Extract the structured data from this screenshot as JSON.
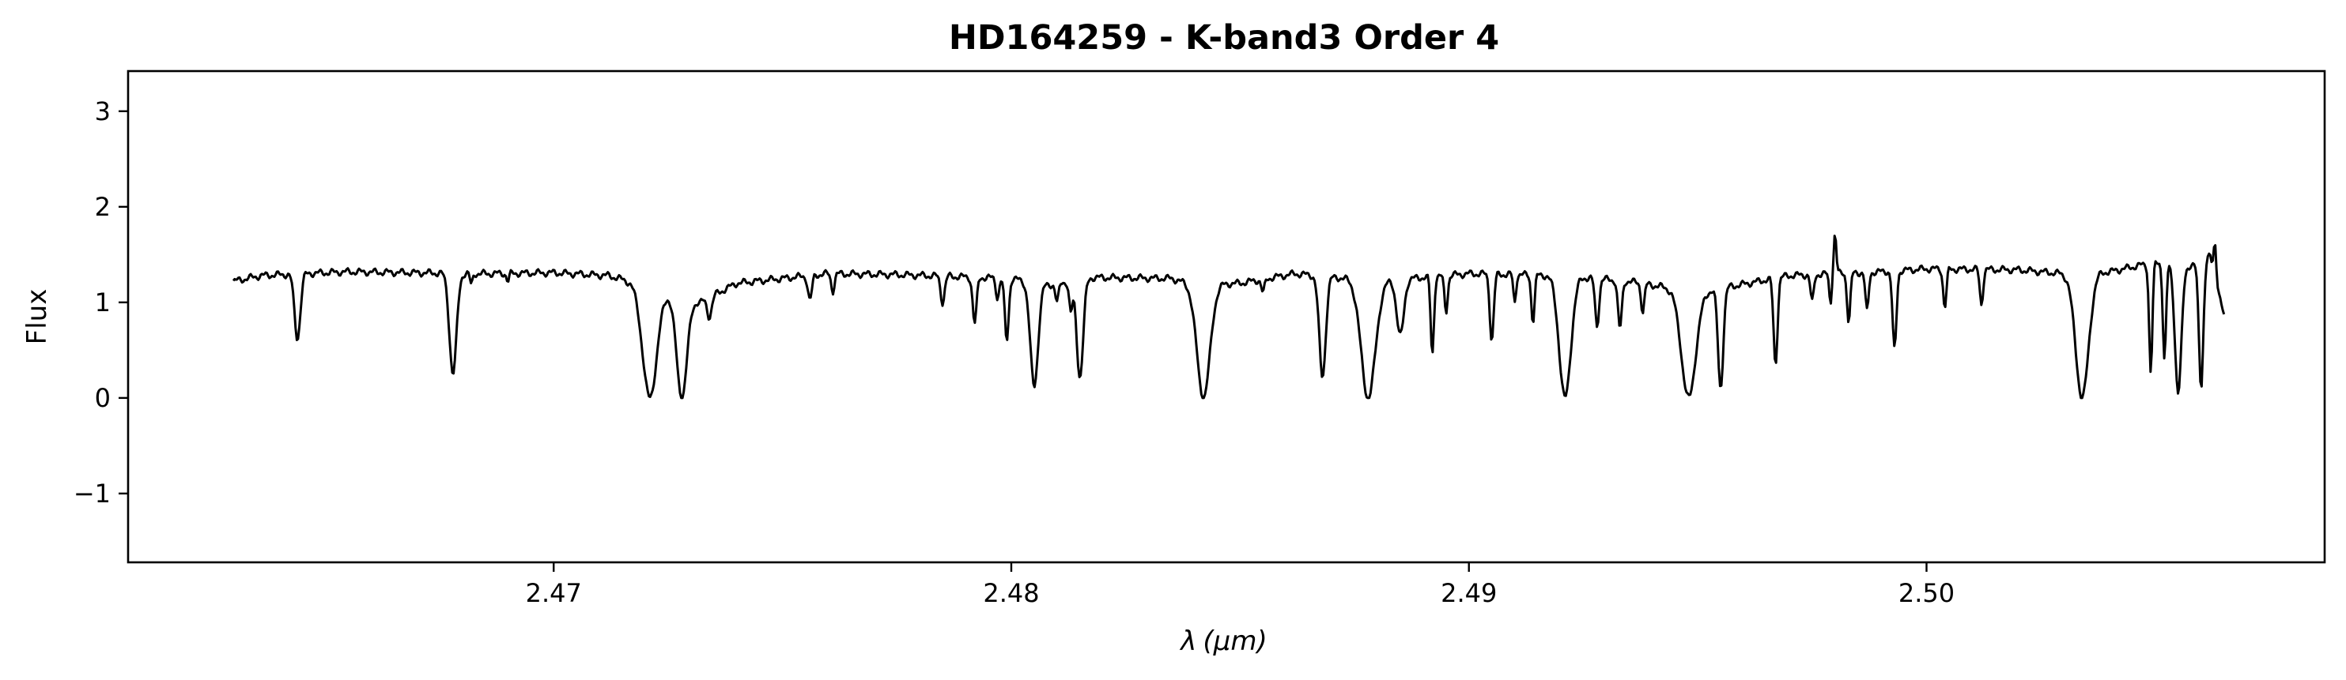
{
  "chart_data": {
    "type": "line",
    "title": "HD164259 - K-band3 Order 4",
    "xlabel_symbol": "λ",
    "xlabel_unit": "(μm)",
    "ylabel": "Flux",
    "xlim": [
      2.4607,
      2.5087
    ],
    "ylim": [
      -1.72,
      3.42
    ],
    "xticks": [
      2.47,
      2.48,
      2.49,
      2.5
    ],
    "xtick_labels": [
      "2.47",
      "2.48",
      "2.49",
      "2.50"
    ],
    "yticks": [
      3,
      2,
      1,
      0,
      -1
    ],
    "ytick_labels": [
      "3",
      "2",
      "1",
      "0",
      "−1"
    ],
    "grid": false,
    "colors": {
      "line": "#000000"
    },
    "series": [
      {
        "continuum": [
          [
            2.463,
            1.22
          ],
          [
            2.4636,
            1.28
          ],
          [
            2.4645,
            1.3
          ],
          [
            2.4655,
            1.32
          ],
          [
            2.467,
            1.31
          ],
          [
            2.4685,
            1.3
          ],
          [
            2.47,
            1.31
          ],
          [
            2.4712,
            1.28
          ],
          [
            2.4718,
            1.2
          ],
          [
            2.4732,
            1.0
          ],
          [
            2.474,
            1.2
          ],
          [
            2.476,
            1.3
          ],
          [
            2.4775,
            1.29
          ],
          [
            2.48,
            1.25
          ],
          [
            2.4808,
            1.18
          ],
          [
            2.4818,
            1.26
          ],
          [
            2.4835,
            1.25
          ],
          [
            2.484,
            1.18
          ],
          [
            2.485,
            1.2
          ],
          [
            2.4862,
            1.3
          ],
          [
            2.488,
            1.22
          ],
          [
            2.49,
            1.3
          ],
          [
            2.492,
            1.28
          ],
          [
            2.4935,
            1.22
          ],
          [
            2.495,
            1.1
          ],
          [
            2.497,
            1.28
          ],
          [
            2.499,
            1.32
          ],
          [
            2.5,
            1.35
          ],
          [
            2.502,
            1.34
          ],
          [
            2.503,
            1.3
          ],
          [
            2.504,
            1.32
          ],
          [
            2.505,
            1.42
          ],
          [
            2.5058,
            1.38
          ],
          [
            2.5062,
            1.48
          ],
          [
            2.5065,
            0.85
          ]
        ],
        "absorption_lines": [
          [
            2.4644,
            0.62,
            9e-05
          ],
          [
            2.4678,
            0.25,
            0.00011
          ],
          [
            2.4682,
            1.18,
            4e-05
          ],
          [
            2.469,
            1.22,
            4e-05
          ],
          [
            2.4721,
            0.0,
            0.00022
          ],
          [
            2.4728,
            0.0,
            0.00016
          ],
          [
            2.4734,
            0.85,
            7e-05
          ],
          [
            2.4756,
            1.02,
            6e-05
          ],
          [
            2.4761,
            1.12,
            5e-05
          ],
          [
            2.4785,
            1.0,
            6e-05
          ],
          [
            2.4792,
            0.78,
            6e-05
          ],
          [
            2.4797,
            1.05,
            5e-05
          ],
          [
            2.4799,
            0.6,
            6e-05
          ],
          [
            2.4805,
            0.12,
            0.00012
          ],
          [
            2.481,
            1.0,
            5e-05
          ],
          [
            2.4813,
            0.9,
            5e-05
          ],
          [
            2.4815,
            0.22,
            0.0001
          ],
          [
            2.4842,
            0.0,
            0.0002
          ],
          [
            2.4855,
            1.1,
            5e-05
          ],
          [
            2.4868,
            0.22,
            0.0001
          ],
          [
            2.4878,
            0.0,
            0.00022
          ],
          [
            2.4885,
            0.65,
            0.00011
          ],
          [
            2.4892,
            0.45,
            5e-05
          ],
          [
            2.4895,
            0.9,
            5e-05
          ],
          [
            2.4905,
            0.6,
            6e-05
          ],
          [
            2.491,
            1.0,
            4e-05
          ],
          [
            2.4914,
            0.8,
            5e-05
          ],
          [
            2.4921,
            0.0,
            0.00018
          ],
          [
            2.4928,
            0.75,
            6e-05
          ],
          [
            2.4933,
            0.72,
            6e-05
          ],
          [
            2.4938,
            0.9,
            5e-05
          ],
          [
            2.4948,
            0.0,
            0.00022
          ],
          [
            2.4955,
            0.1,
            8e-05
          ],
          [
            2.4967,
            0.35,
            6e-05
          ],
          [
            2.4975,
            1.0,
            5e-05
          ],
          [
            2.4979,
            1.0,
            4e-05
          ],
          [
            2.4983,
            0.8,
            5e-05
          ],
          [
            2.4987,
            0.9,
            5e-05
          ],
          [
            2.4993,
            0.5,
            6e-05
          ],
          [
            2.5004,
            0.95,
            5e-05
          ],
          [
            2.5012,
            0.98,
            5e-05
          ],
          [
            2.5034,
            0.0,
            0.0002
          ],
          [
            2.5049,
            0.27,
            5e-05
          ],
          [
            2.5052,
            0.4,
            5e-05
          ],
          [
            2.5055,
            0.05,
            0.0001
          ],
          [
            2.506,
            0.2,
            7e-05
          ]
        ],
        "emission_spikes": [
          [
            2.498,
            1.72,
            4e-05
          ],
          [
            2.506,
            1.35,
            4e-05
          ],
          [
            2.5063,
            1.64,
            4e-05
          ]
        ]
      }
    ]
  }
}
